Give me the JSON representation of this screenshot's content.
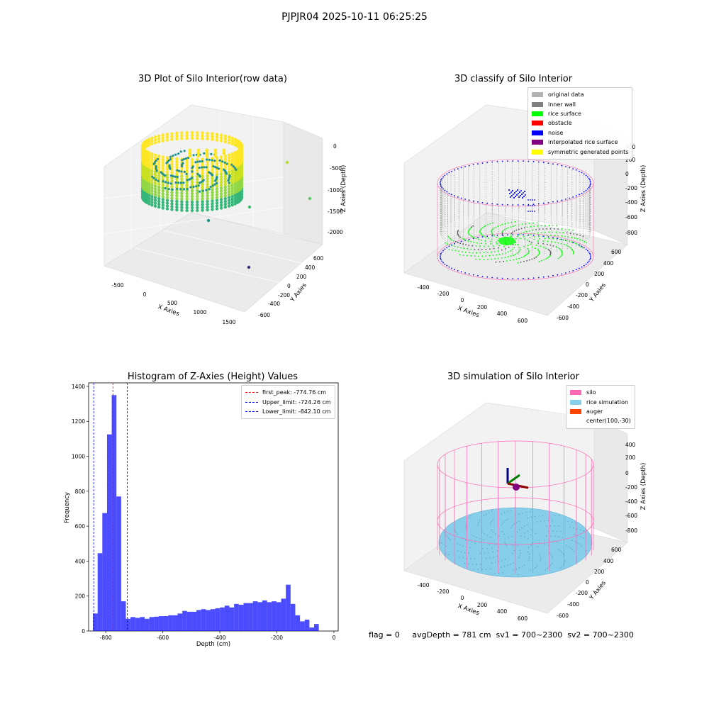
{
  "figure": {
    "title": "PJPJR04 2025-10-11 06:25:25",
    "footer": "flag = 0     avgDepth = 781 cm  sv1 = 700~2300  sv2 = 700~2300"
  },
  "chart_data": [
    {
      "type": "scatter3d",
      "title": "3D Plot of Silo Interior(row data)",
      "xlabel": "X Axies",
      "ylabel": "Y Axies",
      "zlabel": "Z Axies (Depth)",
      "xticks": [
        "-500",
        "0",
        "500",
        "1000",
        "1500"
      ],
      "yticks": [
        "-600",
        "-400",
        "-200",
        "0",
        "200",
        "400",
        "600"
      ],
      "zticks": [
        "0",
        "-500",
        "-1000",
        "-1500",
        "-2000"
      ],
      "colormap": "viridis",
      "description_points": "dense cylindrical point cloud of silo wall colored by depth plus scattered outliers"
    },
    {
      "type": "scatter3d",
      "title": "3D classify of Silo Interior",
      "xlabel": "X Axies",
      "ylabel": "Y Axies",
      "zlabel": "Z Axies (Depth)",
      "xticks": [
        "-400",
        "-200",
        "0",
        "200",
        "400",
        "600"
      ],
      "yticks": [
        "-600",
        "-400",
        "-200",
        "0",
        "200",
        "400",
        "600"
      ],
      "zticks": [
        "400",
        "200",
        "0",
        "-200",
        "-400",
        "-600",
        "-800"
      ],
      "legend": [
        {
          "label": "original data",
          "color": "#b3b3b3"
        },
        {
          "label": "inner wall",
          "color": "#808080"
        },
        {
          "label": "rice surface",
          "color": "#00ff00"
        },
        {
          "label": "obstacle",
          "color": "#ff0000"
        },
        {
          "label": "noise",
          "color": "#0000ff"
        },
        {
          "label": "interpolated rice surface",
          "color": "#800080"
        },
        {
          "label": "symmetric generated points",
          "color": "#ffff00"
        }
      ]
    },
    {
      "type": "histogram",
      "title": "Histogram of Z-Axies (Height) Values",
      "xlabel": "Depth (cm)",
      "ylabel": "Frequency",
      "xlim": [
        -860,
        15
      ],
      "ylim": [
        0,
        1420
      ],
      "xticks": [
        -800,
        -600,
        -400,
        -200,
        0
      ],
      "yticks": [
        0,
        200,
        400,
        600,
        800,
        1000,
        1200,
        1400
      ],
      "bar_color": "#0000ff",
      "bins": {
        "start": -845,
        "width": 16.5,
        "values": [
          100,
          445,
          675,
          1125,
          1350,
          770,
          170,
          70,
          80,
          75,
          80,
          70,
          80,
          82,
          85,
          85,
          90,
          90,
          100,
          115,
          110,
          110,
          120,
          125,
          120,
          125,
          130,
          135,
          145,
          135,
          155,
          150,
          160,
          160,
          170,
          165,
          175,
          165,
          170,
          165,
          185,
          265,
          155,
          90,
          55,
          65,
          20,
          40
        ]
      },
      "lines": [
        {
          "label": "first_peak: -774.76 cm",
          "x": -774.76,
          "color": "#ff0000"
        },
        {
          "label": "Upper_limit: -724.26 cm",
          "x": -724.26,
          "color": "#0000ff"
        },
        {
          "label": "Lower_limit: -842.10 cm",
          "x": -842.1,
          "color": "#0000ff"
        }
      ]
    },
    {
      "type": "surface3d",
      "title": "3D simulation of Silo Interior",
      "xlabel": "X Axies",
      "ylabel": "Y Axies",
      "zlabel": "Z Axies (Depth)",
      "xticks": [
        "-400",
        "-200",
        "0",
        "200",
        "400",
        "600"
      ],
      "yticks": [
        "-600",
        "-400",
        "-200",
        "0",
        "200",
        "400",
        "600"
      ],
      "zticks": [
        "400",
        "200",
        "0",
        "-200",
        "-400",
        "-600",
        "-800"
      ],
      "legend": [
        {
          "label": "silo",
          "color": "#ff69b4"
        },
        {
          "label": "rice simulation",
          "color": "#87ceeb"
        },
        {
          "label": "auger",
          "color": "#ff4500"
        },
        {
          "label": "center(100,-30)",
          "color": "#ffffff"
        }
      ]
    }
  ]
}
